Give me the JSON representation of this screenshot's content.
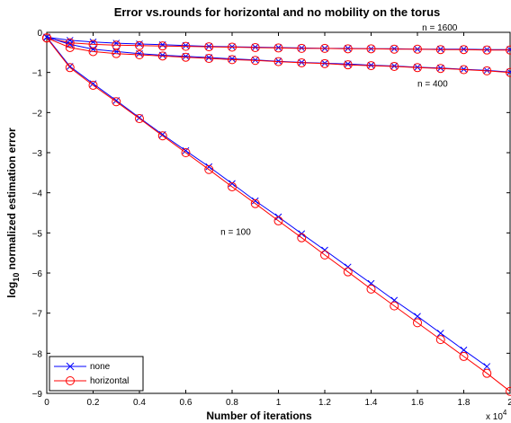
{
  "chart_data": {
    "type": "line",
    "title": "Error vs.rounds for horizontal and no mobility on the torus",
    "xlabel": "Number of iterations",
    "ylabel_main": "log",
    "ylabel_sub": "10",
    "ylabel_rest": " normalized estimation error",
    "x_exponent_label": "x 10",
    "x_exponent_power": "4",
    "xlim": [
      0,
      2
    ],
    "ylim": [
      -9,
      0
    ],
    "xticks": [
      0,
      0.2,
      0.4,
      0.6,
      0.8,
      1,
      1.2,
      1.4,
      1.6,
      1.8,
      2
    ],
    "xtick_labels": [
      "0",
      "0.2",
      "0.4",
      "0.6",
      "0.8",
      "1",
      "1.2",
      "1.4",
      "1.6",
      "1.8",
      "2"
    ],
    "yticks": [
      0,
      -1,
      -2,
      -3,
      -4,
      -5,
      -6,
      -7,
      -8,
      -9
    ],
    "ytick_labels": [
      "0",
      "−1",
      "−2",
      "−3",
      "−4",
      "−5",
      "−6",
      "−7",
      "−8",
      "−9"
    ],
    "grid": false,
    "legend_position": "bottom-left",
    "legend": [
      {
        "label": "none",
        "color": "#0000ff",
        "marker": "x"
      },
      {
        "label": "horizontal",
        "color": "#ff0000",
        "marker": "o"
      }
    ],
    "annotations": [
      {
        "text": "n = 1600",
        "x": 1.62,
        "y": 0.05
      },
      {
        "text": "n = 400",
        "x": 1.6,
        "y": -1.35
      },
      {
        "text": "n = 100",
        "x": 0.75,
        "y": -5.05
      }
    ],
    "series": [
      {
        "group": "n = 1600",
        "legend": "none",
        "color": "#0000ff",
        "marker": "x",
        "x": [
          0,
          0.1,
          0.2,
          0.3,
          0.4,
          0.5,
          0.6,
          0.7,
          0.8,
          0.9,
          1.0,
          1.1,
          1.2,
          1.3,
          1.4,
          1.5,
          1.6,
          1.7,
          1.8,
          1.9,
          2.0
        ],
        "y": [
          -0.12,
          -0.2,
          -0.24,
          -0.27,
          -0.29,
          -0.31,
          -0.33,
          -0.35,
          -0.36,
          -0.37,
          -0.38,
          -0.39,
          -0.4,
          -0.4,
          -0.41,
          -0.41,
          -0.42,
          -0.42,
          -0.42,
          -0.43,
          -0.43
        ]
      },
      {
        "group": "n = 1600",
        "legend": "horizontal",
        "color": "#ff0000",
        "marker": "o",
        "x": [
          0,
          0.1,
          0.2,
          0.3,
          0.4,
          0.5,
          0.6,
          0.7,
          0.8,
          0.9,
          1.0,
          1.1,
          1.2,
          1.3,
          1.4,
          1.5,
          1.6,
          1.7,
          1.8,
          1.9,
          2.0
        ],
        "y": [
          -0.14,
          -0.26,
          -0.3,
          -0.32,
          -0.33,
          -0.34,
          -0.35,
          -0.36,
          -0.37,
          -0.38,
          -0.39,
          -0.4,
          -0.4,
          -0.41,
          -0.41,
          -0.42,
          -0.42,
          -0.43,
          -0.43,
          -0.44,
          -0.44
        ]
      },
      {
        "group": "n = 400",
        "legend": "none",
        "color": "#0000ff",
        "marker": "x",
        "x": [
          0,
          0.1,
          0.2,
          0.3,
          0.4,
          0.5,
          0.6,
          0.7,
          0.8,
          0.9,
          1.0,
          1.1,
          1.2,
          1.3,
          1.4,
          1.5,
          1.6,
          1.7,
          1.8,
          1.9,
          2.0
        ],
        "y": [
          -0.12,
          -0.3,
          -0.42,
          -0.48,
          -0.53,
          -0.57,
          -0.6,
          -0.63,
          -0.66,
          -0.69,
          -0.72,
          -0.75,
          -0.77,
          -0.79,
          -0.82,
          -0.84,
          -0.87,
          -0.89,
          -0.92,
          -0.95,
          -0.99
        ]
      },
      {
        "group": "n = 400",
        "legend": "horizontal",
        "color": "#ff0000",
        "marker": "o",
        "x": [
          0,
          0.1,
          0.2,
          0.3,
          0.4,
          0.5,
          0.6,
          0.7,
          0.8,
          0.9,
          1.0,
          1.1,
          1.2,
          1.3,
          1.4,
          1.5,
          1.6,
          1.7,
          1.8,
          1.9,
          2.0
        ],
        "y": [
          -0.14,
          -0.38,
          -0.48,
          -0.53,
          -0.56,
          -0.59,
          -0.62,
          -0.65,
          -0.68,
          -0.7,
          -0.73,
          -0.76,
          -0.78,
          -0.81,
          -0.83,
          -0.85,
          -0.88,
          -0.9,
          -0.93,
          -0.96,
          -1.0
        ]
      },
      {
        "group": "n = 100",
        "legend": "none",
        "color": "#0000ff",
        "marker": "x",
        "x": [
          0,
          0.1,
          0.2,
          0.3,
          0.4,
          0.5,
          0.6,
          0.7,
          0.8,
          0.9,
          1.0,
          1.1,
          1.2,
          1.3,
          1.4,
          1.5,
          1.6,
          1.7,
          1.8,
          1.9
        ],
        "y": [
          -0.12,
          -0.85,
          -1.28,
          -1.7,
          -2.13,
          -2.55,
          -2.95,
          -3.35,
          -3.77,
          -4.2,
          -4.6,
          -5.02,
          -5.43,
          -5.85,
          -6.26,
          -6.68,
          -7.08,
          -7.5,
          -7.92,
          -8.33
        ]
      },
      {
        "group": "n = 100",
        "legend": "horizontal",
        "color": "#ff0000",
        "marker": "o",
        "x": [
          0,
          0.1,
          0.2,
          0.3,
          0.4,
          0.5,
          0.6,
          0.7,
          0.8,
          0.9,
          1.0,
          1.1,
          1.2,
          1.3,
          1.4,
          1.5,
          1.6,
          1.7,
          1.8,
          1.9,
          2.0
        ],
        "y": [
          -0.14,
          -0.88,
          -1.32,
          -1.73,
          -2.15,
          -2.58,
          -3.0,
          -3.42,
          -3.85,
          -4.27,
          -4.7,
          -5.12,
          -5.55,
          -5.97,
          -6.4,
          -6.82,
          -7.24,
          -7.66,
          -8.08,
          -8.5,
          -8.95
        ]
      }
    ]
  }
}
